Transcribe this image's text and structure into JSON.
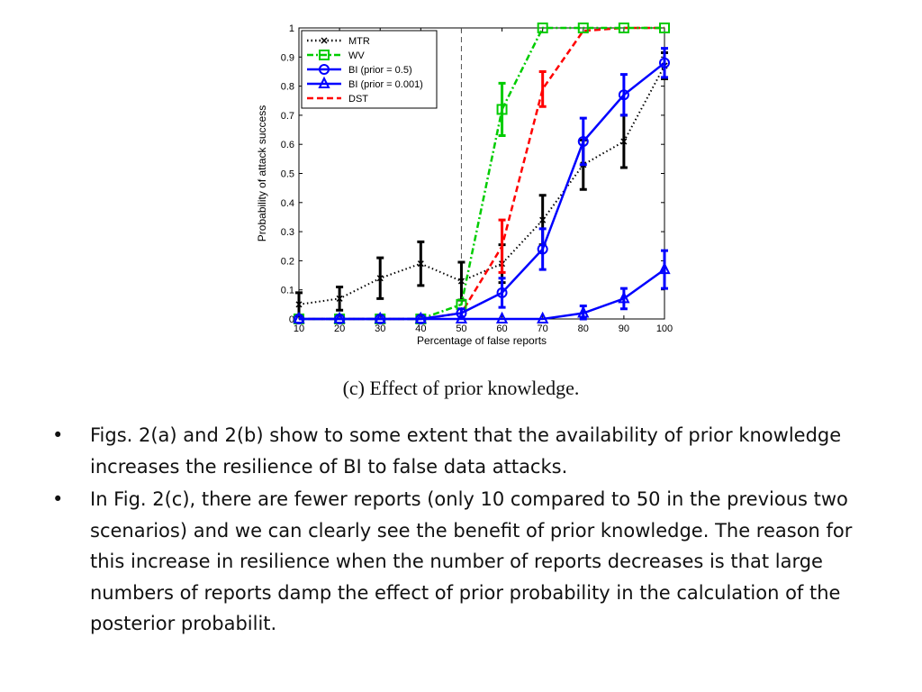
{
  "chart_data": {
    "type": "line",
    "xlabel": "Percentage of false reports",
    "ylabel": "Probability of attack success",
    "xlim": [
      10,
      100
    ],
    "ylim": [
      0,
      1
    ],
    "x_ticks": [
      10,
      20,
      30,
      40,
      50,
      60,
      70,
      80,
      90,
      100
    ],
    "y_ticks": [
      0,
      0.1,
      0.2,
      0.3,
      0.4,
      0.5,
      0.6,
      0.7,
      0.8,
      0.9,
      1
    ],
    "x_tick_labels": [
      "10",
      "20",
      "30",
      "40",
      "50",
      "60",
      "70",
      "80",
      "90",
      "100"
    ],
    "y_tick_labels": [
      "0",
      "0.1",
      "0.2",
      "0.3",
      "0.4",
      "0.5",
      "0.6",
      "0.7",
      "0.8",
      "0.9",
      "1"
    ],
    "vertical_reference_line_x": 50,
    "legend_position": "top-left",
    "grid": false,
    "x": [
      10,
      20,
      30,
      40,
      50,
      60,
      70,
      80,
      90,
      100
    ],
    "series": [
      {
        "name": "MTR",
        "color": "#000000",
        "style": "dotted",
        "marker": "x",
        "values": [
          0.05,
          0.07,
          0.14,
          0.19,
          0.13,
          0.19,
          0.34,
          0.53,
          0.61,
          0.87
        ],
        "errors": [
          0.04,
          0.04,
          0.07,
          0.075,
          0.065,
          0.065,
          0.085,
          0.085,
          0.09,
          0.045
        ]
      },
      {
        "name": "WV",
        "color": "#00cc00",
        "style": "dashdot",
        "marker": "square",
        "values": [
          0,
          0,
          0,
          0,
          0.05,
          0.72,
          1,
          1,
          1,
          1
        ],
        "errors": [
          0,
          0,
          0,
          0,
          0,
          0.09,
          0,
          0,
          0,
          0
        ]
      },
      {
        "name": "BI (prior = 0.5)",
        "color": "#0000ff",
        "style": "solid",
        "marker": "circle",
        "values": [
          0,
          0,
          0,
          0,
          0.02,
          0.09,
          0.24,
          0.61,
          0.77,
          0.88
        ],
        "errors": [
          0,
          0,
          0,
          0,
          0.015,
          0.05,
          0.07,
          0.08,
          0.07,
          0.05
        ]
      },
      {
        "name": "BI (prior = 0.001)",
        "color": "#0000ff",
        "style": "solid",
        "marker": "triangle",
        "values": [
          0,
          0,
          0,
          0,
          0,
          0,
          0,
          0.02,
          0.07,
          0.17
        ],
        "errors": [
          0,
          0,
          0,
          0,
          0,
          0,
          0,
          0.025,
          0.035,
          0.065
        ]
      },
      {
        "name": "DST",
        "color": "#ff0000",
        "style": "dashed",
        "marker": "none",
        "values": [
          0,
          0,
          0,
          0,
          0.02,
          0.25,
          0.79,
          0.99,
          1,
          1
        ],
        "errors": [
          0,
          0,
          0,
          0,
          0,
          0.09,
          0.06,
          0,
          0,
          0
        ]
      }
    ]
  },
  "caption": "(c)  Effect of prior knowledge.",
  "bullets": [
    {
      "marker": "•",
      "text": "Figs. 2(a) and 2(b) show to some extent that the availability of prior knowledge increases the resilience of BI to false data attacks."
    },
    {
      "marker": "•",
      "text": "In Fig. 2(c), there are fewer reports (only 10 compared to 50 in the previous two scenarios) and we can clearly see the benefit of prior knowledge. The reason for this increase in resilience when the number of reports decreases is that large numbers of reports damp the effect of prior probability in the calculation of the posterior probabilit."
    }
  ]
}
